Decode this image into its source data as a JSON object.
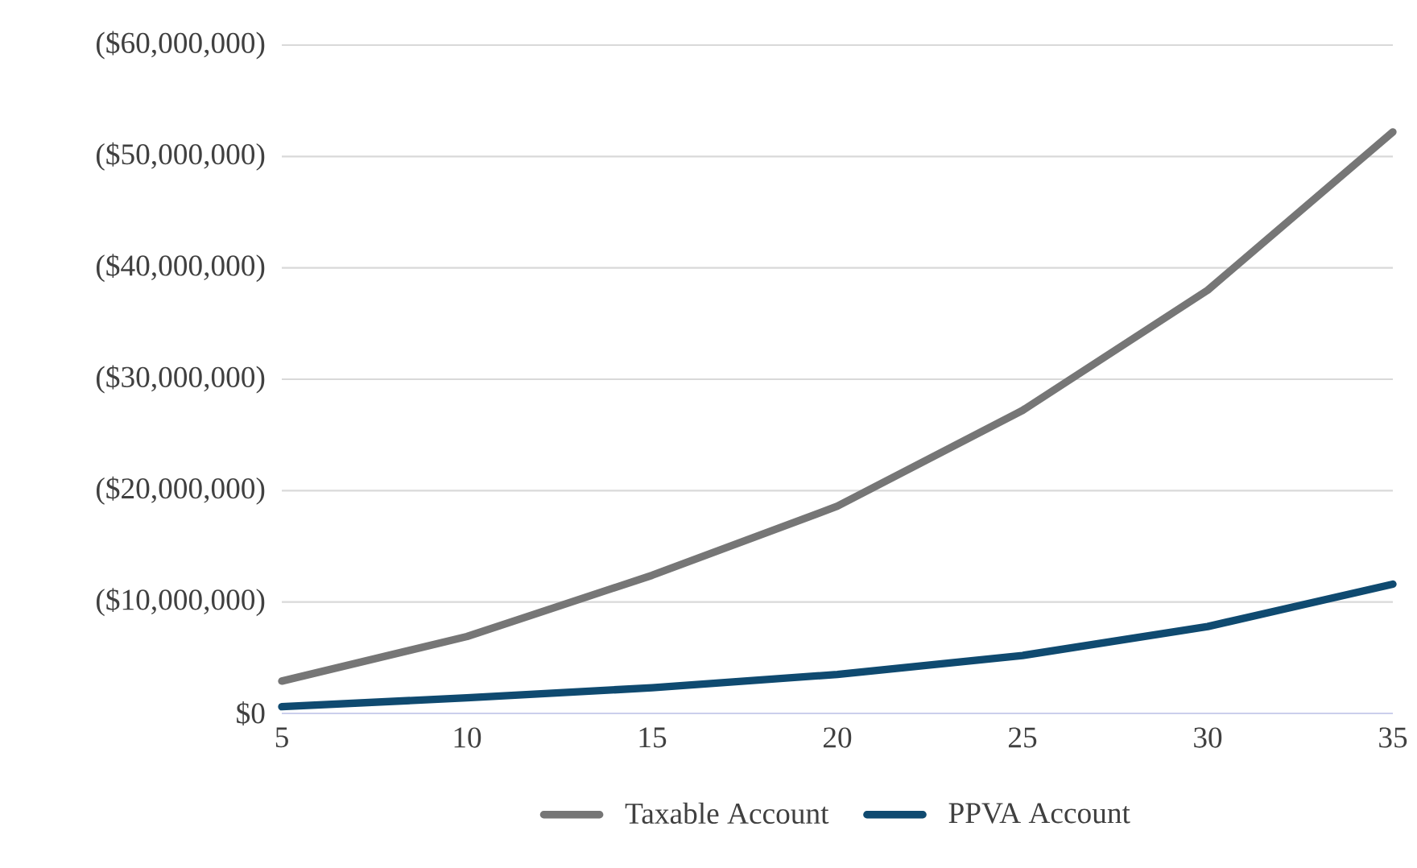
{
  "chart_data": {
    "type": "line",
    "categories": [
      "5",
      "10",
      "15",
      "20",
      "25",
      "30",
      "35"
    ],
    "series": [
      {
        "name": "Taxable Account",
        "color": "#767676",
        "values": [
          2900000,
          6900000,
          12400000,
          18600000,
          27200000,
          38000000,
          52200000
        ]
      },
      {
        "name": "PPVA Account",
        "color": "#0f4a70",
        "values": [
          600000,
          1400000,
          2300000,
          3500000,
          5200000,
          7800000,
          11600000
        ]
      }
    ],
    "ylim": [
      0,
      60000000
    ],
    "yticks": [
      {
        "value": 0,
        "label": "$0"
      },
      {
        "value": 10000000,
        "label": "($10,000,000)"
      },
      {
        "value": 20000000,
        "label": "($20,000,000)"
      },
      {
        "value": 30000000,
        "label": "($30,000,000)"
      },
      {
        "value": 40000000,
        "label": "($40,000,000)"
      },
      {
        "value": 50000000,
        "label": "($50,000,000)"
      },
      {
        "value": 60000000,
        "label": "($60,000,000)"
      }
    ],
    "grid": "y",
    "legend": "bottom",
    "marker": "none",
    "line_style": "solid"
  }
}
